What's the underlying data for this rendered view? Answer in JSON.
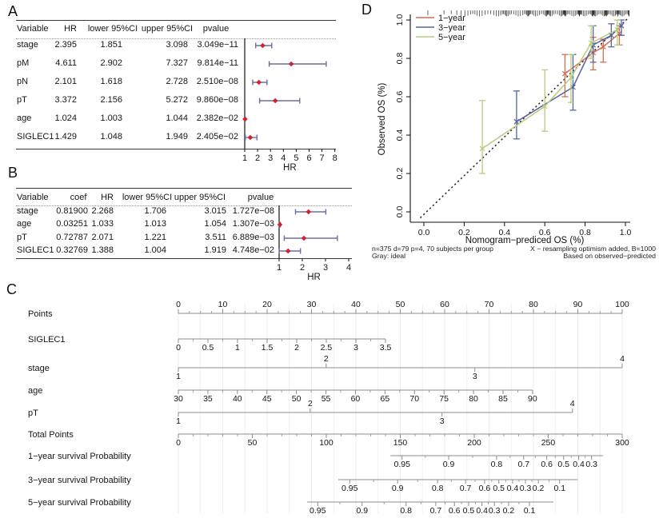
{
  "figure": {
    "panel_labels": {
      "a": "A",
      "b": "B",
      "c": "C",
      "d": "D"
    }
  },
  "colors": {
    "ci": "#6b6f9d",
    "point": "#d3212d",
    "axis_line": "#8c8c8c",
    "grid": "#ececec",
    "ideal": "#2a2a2a",
    "year1": "#d96a53",
    "year3": "#5565a2",
    "year5": "#b9cb7c"
  },
  "chart_data": {
    "forest_a": {
      "type": "table",
      "headers": [
        "Variable",
        "HR",
        "lower 95%CI",
        "upper 95%CI",
        "pvalue"
      ],
      "rows": [
        [
          "stage",
          "2.395",
          "1.851",
          "3.098",
          "3.049e−11"
        ],
        [
          "pM",
          "4.611",
          "2.902",
          "7.327",
          "9.814e−11"
        ],
        [
          "pN",
          "2.101",
          "1.618",
          "2.728",
          "2.510e−08"
        ],
        [
          "pT",
          "3.372",
          "2.156",
          "5.272",
          "9.860e−08"
        ],
        [
          "age",
          "1.024",
          "1.003",
          "1.044",
          "2.382e−02"
        ],
        [
          "SIGLEC1",
          "1.429",
          "1.048",
          "1.949",
          "2.405e−02"
        ]
      ],
      "hr_col": 1,
      "lo_col": 2,
      "hi_col": 3,
      "axis": {
        "min": 1,
        "max": 8,
        "ticks": [
          "1",
          "2",
          "3",
          "4",
          "5",
          "6",
          "7",
          "8"
        ],
        "label": "HR"
      }
    },
    "forest_b": {
      "type": "table",
      "headers": [
        "Variable",
        "coef",
        "HR",
        "lower 95%CI",
        "upper 95%CI",
        "pvalue"
      ],
      "rows": [
        [
          "stage",
          "0.81900",
          "2.268",
          "1.706",
          "3.015",
          "1.727e−08"
        ],
        [
          "age",
          "0.03251",
          "1.033",
          "1.013",
          "1.054",
          "1.307e−03"
        ],
        [
          "pT",
          "0.72787",
          "2.071",
          "1.221",
          "3.511",
          "6.889e−03"
        ],
        [
          "SIGLEC1",
          "0.32769",
          "1.388",
          "1.004",
          "1.919",
          "4.748e−02"
        ]
      ],
      "hr_col": 2,
      "lo_col": 3,
      "hi_col": 4,
      "axis": {
        "min": 1,
        "max": 4,
        "ticks": [
          "1",
          "2",
          "3",
          "4"
        ],
        "label": "HR"
      }
    },
    "nomogram": {
      "type": "nomogram",
      "rows": [
        {
          "label": "Points",
          "line": [
            0,
            1
          ],
          "side": "a",
          "minor": 3,
          "ticks": [
            [
              0,
              "0"
            ],
            [
              0.1,
              "10"
            ],
            [
              0.2,
              "20"
            ],
            [
              0.3,
              "30"
            ],
            [
              0.4,
              "40"
            ],
            [
              0.5,
              "50"
            ],
            [
              0.6,
              "60"
            ],
            [
              0.7,
              "70"
            ],
            [
              0.8,
              "80"
            ],
            [
              0.9,
              "90"
            ],
            [
              1,
              "100"
            ]
          ]
        },
        {
          "label": "SIGLEC1",
          "line": [
            0,
            0.4667
          ],
          "side": "b",
          "minor": 1,
          "ticks": [
            [
              0,
              "0"
            ],
            [
              0.0667,
              "0.5"
            ],
            [
              0.1333,
              "1"
            ],
            [
              0.2,
              "1.5"
            ],
            [
              0.2667,
              "2"
            ],
            [
              0.3333,
              "2.5"
            ],
            [
              0.4,
              "3"
            ],
            [
              0.4667,
              "3.5"
            ]
          ]
        },
        {
          "label": "stage",
          "line": [
            0,
            1
          ],
          "side": "mixed",
          "ticks": [
            [
              0,
              "1",
              "b"
            ],
            [
              0.333,
              "2",
              "a"
            ],
            [
              0.668,
              "3",
              "b"
            ],
            [
              1,
              "4",
              "a"
            ]
          ]
        },
        {
          "label": "age",
          "line": [
            0,
            0.798
          ],
          "side": "b",
          "minor": 1,
          "ticks": [
            [
              0,
              "30"
            ],
            [
              0.0665,
              "35"
            ],
            [
              0.133,
              "40"
            ],
            [
              0.1995,
              "45"
            ],
            [
              0.266,
              "50"
            ],
            [
              0.3325,
              "55"
            ],
            [
              0.399,
              "60"
            ],
            [
              0.4655,
              "65"
            ],
            [
              0.532,
              "70"
            ],
            [
              0.5985,
              "75"
            ],
            [
              0.665,
              "80"
            ],
            [
              0.7315,
              "85"
            ],
            [
              0.798,
              "90"
            ]
          ]
        },
        {
          "label": "pT",
          "line": [
            0,
            0.888
          ],
          "side": "mixed",
          "ticks": [
            [
              0,
              "1",
              "b"
            ],
            [
              0.297,
              "2",
              "a"
            ],
            [
              0.594,
              "3",
              "b"
            ],
            [
              0.888,
              "4",
              "a"
            ]
          ]
        },
        {
          "label": "Total Points",
          "line": [
            0,
            1
          ],
          "side": "b",
          "minor": 4,
          "ticks": [
            [
              0,
              "0"
            ],
            [
              0.1667,
              "50"
            ],
            [
              0.3333,
              "100"
            ],
            [
              0.5,
              "150"
            ],
            [
              0.6667,
              "200"
            ],
            [
              0.8333,
              "250"
            ],
            [
              1,
              "300"
            ]
          ]
        },
        {
          "label": "1−year survival Probability",
          "line": [
            0.478,
            0.957
          ],
          "side": "b",
          "mid_minor": true,
          "ticks": [
            [
              0.504,
              "0.95"
            ],
            [
              0.609,
              "0.9"
            ],
            [
              0.717,
              "0.8"
            ],
            [
              0.778,
              "0.7"
            ],
            [
              0.83,
              "0.6"
            ],
            [
              0.868,
              "0.5"
            ],
            [
              0.902,
              "0.4"
            ],
            [
              0.931,
              "0.3"
            ]
          ]
        },
        {
          "label": "3−year survival Probability",
          "line": [
            0.36,
            0.9
          ],
          "side": "b",
          "mid_minor": true,
          "ticks": [
            [
              0.386,
              "0.95"
            ],
            [
              0.494,
              "0.9"
            ],
            [
              0.584,
              "0.8"
            ],
            [
              0.647,
              "0.7"
            ],
            [
              0.69,
              "0.6"
            ],
            [
              0.722,
              "0.5"
            ],
            [
              0.753,
              "0.4"
            ],
            [
              0.782,
              "0.3"
            ],
            [
              0.811,
              "0.2"
            ],
            [
              0.859,
              "0.1"
            ]
          ]
        },
        {
          "label": "5−year survival Probability",
          "line": [
            0.29,
            0.845
          ],
          "side": "b",
          "mid_minor": true,
          "ticks": [
            [
              0.314,
              "0.95"
            ],
            [
              0.414,
              "0.9"
            ],
            [
              0.513,
              "0.8"
            ],
            [
              0.58,
              "0.7"
            ],
            [
              0.622,
              "0.6"
            ],
            [
              0.654,
              "0.5"
            ],
            [
              0.684,
              "0.4"
            ],
            [
              0.712,
              "0.3"
            ],
            [
              0.744,
              "0.2"
            ],
            [
              0.791,
              "0.1"
            ]
          ]
        }
      ]
    },
    "calibration": {
      "type": "line",
      "xlabel": "Nomogram−prediced OS (%)",
      "ylabel": "Observed OS (%)",
      "xlim": [
        0,
        1
      ],
      "ylim": [
        0,
        1
      ],
      "xticks": [
        "0.0",
        "0.2",
        "0.4",
        "0.6",
        "0.8",
        "1.0"
      ],
      "yticks": [
        "0.0",
        "0.2",
        "0.4",
        "0.6",
        "0.8",
        "1.0"
      ],
      "ideal": "dotted diagonal",
      "legend_position": "top-left",
      "series": [
        {
          "name": "1−year",
          "color": "#d96a53",
          "x": [
            0.7,
            0.84,
            0.89,
            0.97
          ],
          "y": [
            0.72,
            0.83,
            0.86,
            0.93
          ],
          "lo": [
            0.6,
            0.74,
            0.78,
            0.87
          ],
          "hi": [
            0.82,
            0.91,
            0.9,
            0.97
          ]
        },
        {
          "name": "3−year",
          "color": "#5565a2",
          "x": [
            0.46,
            0.74,
            0.84,
            0.93,
            0.98
          ],
          "y": [
            0.47,
            0.65,
            0.87,
            0.92,
            0.97
          ],
          "lo": [
            0.38,
            0.53,
            0.78,
            0.86,
            0.92
          ],
          "hi": [
            0.63,
            0.82,
            0.97,
            0.98,
            1.0
          ]
        },
        {
          "name": "5−year",
          "color": "#b9cb7c",
          "x": [
            0.29,
            0.6,
            0.73,
            0.83,
            0.96
          ],
          "y": [
            0.33,
            0.55,
            0.7,
            0.88,
            0.95
          ],
          "lo": [
            0.2,
            0.42,
            0.57,
            0.8,
            0.87
          ],
          "hi": [
            0.58,
            0.74,
            0.82,
            0.97,
            1.0
          ]
        }
      ],
      "notes1_left": "n=375 d=79 p=4, 70 subjects per group",
      "notes1_right": "X − resampling optimism added, B=1000",
      "notes2_left": "Gray: ideal",
      "notes2_right": "Based on observed−predicted"
    }
  }
}
